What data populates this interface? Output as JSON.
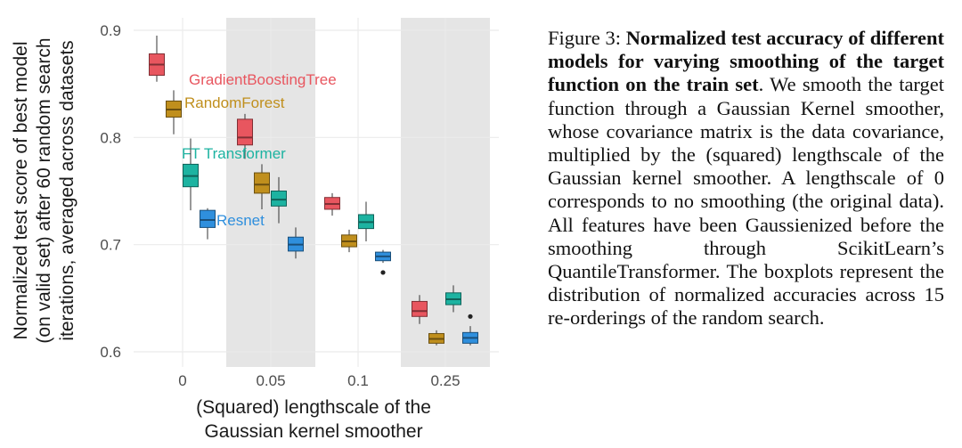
{
  "chart_data": {
    "type": "boxplot",
    "xlabel_lines": [
      "(Squared) lengthscale of the",
      "Gaussian kernel smoother"
    ],
    "ylabel_lines": [
      "Normalized test score of best model",
      "(on valid set) after 60 random search",
      "iterations, averaged across datasets"
    ],
    "categories": [
      "0",
      "0.05",
      "0.1",
      "0.25"
    ],
    "y_ticks": [
      0.6,
      0.7,
      0.8,
      0.9
    ],
    "y_tick_labels": [
      "0.6",
      "0.7",
      "0.8",
      "0.9"
    ],
    "ylim": [
      0.59,
      0.91
    ],
    "shaded_categories": [
      "0.05",
      "0.25"
    ],
    "series": [
      {
        "name": "GradientBoostingTree",
        "color": "#E8565F",
        "boxes": [
          {
            "category": "0",
            "whisker_low": 0.852,
            "q1": 0.858,
            "median": 0.868,
            "q3": 0.878,
            "whisker_high": 0.895,
            "outliers": []
          },
          {
            "category": "0.05",
            "whisker_low": 0.78,
            "q1": 0.793,
            "median": 0.8,
            "q3": 0.817,
            "whisker_high": 0.822,
            "outliers": []
          },
          {
            "category": "0.1",
            "whisker_low": 0.727,
            "q1": 0.733,
            "median": 0.738,
            "q3": 0.744,
            "whisker_high": 0.748,
            "outliers": []
          },
          {
            "category": "0.25",
            "whisker_low": 0.626,
            "q1": 0.633,
            "median": 0.638,
            "q3": 0.647,
            "whisker_high": 0.653,
            "outliers": []
          }
        ]
      },
      {
        "name": "RandomForest",
        "color": "#C08F1D",
        "boxes": [
          {
            "category": "0",
            "whisker_low": 0.803,
            "q1": 0.819,
            "median": 0.826,
            "q3": 0.834,
            "whisker_high": 0.844,
            "outliers": []
          },
          {
            "category": "0.05",
            "whisker_low": 0.733,
            "q1": 0.748,
            "median": 0.756,
            "q3": 0.767,
            "whisker_high": 0.775,
            "outliers": []
          },
          {
            "category": "0.1",
            "whisker_low": 0.693,
            "q1": 0.698,
            "median": 0.703,
            "q3": 0.709,
            "whisker_high": 0.714,
            "outliers": []
          },
          {
            "category": "0.25",
            "whisker_low": 0.606,
            "q1": 0.608,
            "median": 0.612,
            "q3": 0.617,
            "whisker_high": 0.62,
            "outliers": []
          }
        ]
      },
      {
        "name": "FT Transformer",
        "color": "#1DB3A1",
        "boxes": [
          {
            "category": "0",
            "whisker_low": 0.732,
            "q1": 0.754,
            "median": 0.764,
            "q3": 0.775,
            "whisker_high": 0.799,
            "outliers": []
          },
          {
            "category": "0.05",
            "whisker_low": 0.72,
            "q1": 0.736,
            "median": 0.742,
            "q3": 0.75,
            "whisker_high": 0.763,
            "outliers": []
          },
          {
            "category": "0.1",
            "whisker_low": 0.703,
            "q1": 0.715,
            "median": 0.721,
            "q3": 0.728,
            "whisker_high": 0.74,
            "outliers": []
          },
          {
            "category": "0.25",
            "whisker_low": 0.637,
            "q1": 0.644,
            "median": 0.649,
            "q3": 0.655,
            "whisker_high": 0.662,
            "outliers": []
          }
        ]
      },
      {
        "name": "Resnet",
        "color": "#2F8FDD",
        "boxes": [
          {
            "category": "0",
            "whisker_low": 0.705,
            "q1": 0.716,
            "median": 0.723,
            "q3": 0.732,
            "whisker_high": 0.734,
            "outliers": []
          },
          {
            "category": "0.05",
            "whisker_low": 0.687,
            "q1": 0.694,
            "median": 0.7,
            "q3": 0.707,
            "whisker_high": 0.716,
            "outliers": []
          },
          {
            "category": "0.1",
            "whisker_low": 0.683,
            "q1": 0.685,
            "median": 0.689,
            "q3": 0.693,
            "whisker_high": 0.695,
            "outliers": [
              0.674
            ]
          },
          {
            "category": "0.25",
            "whisker_low": 0.606,
            "q1": 0.608,
            "median": 0.613,
            "q3": 0.618,
            "whisker_high": 0.624,
            "outliers": [
              0.633
            ]
          }
        ]
      }
    ]
  },
  "caption": {
    "prefix": "Figure 3: ",
    "bold": "Normalized test accuracy of different models for varying smoothing of the target function on the train set",
    "body": ". We smooth the target function through a Gaussian Kernel smoother, whose covariance matrix is the data covariance, multiplied by the (squared) lengthscale of the Gaussian kernel smoother. A lengthscale of 0 corresponds to no smoothing (the original data). All features have been Gaussienized before the smoothing through ScikitLearn’s QuantileTransformer. The boxplots represent the distribution of normalized accuracies across 15 re-orderings of the random search."
  }
}
